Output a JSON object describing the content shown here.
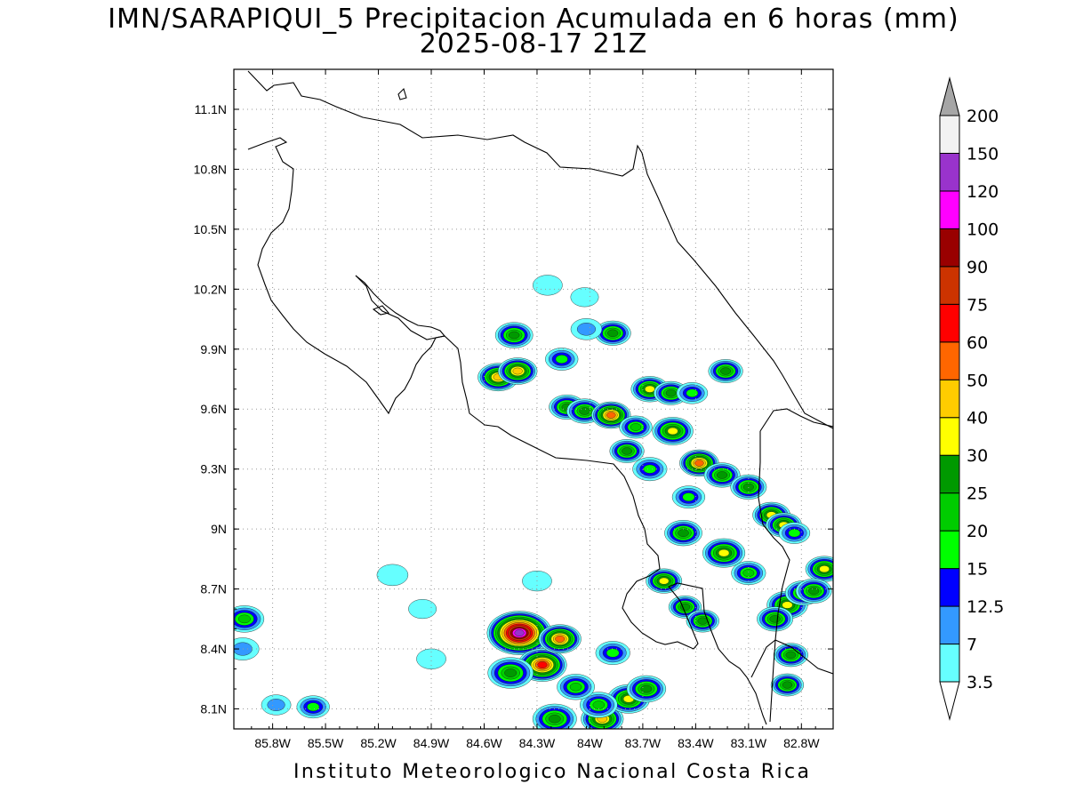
{
  "header": {
    "title": "IMN/SARAPIQUI_5 Precipitacion Acumulada en 6 horas (mm)",
    "subtitle": "2025-08-17 21Z"
  },
  "footer": {
    "credit": "Instituto Meteorologico Nacional Costa Rica"
  },
  "map": {
    "lon_range": [
      -86.02,
      -82.62
    ],
    "lat_range": [
      8.0,
      11.3
    ],
    "lon_ticks": [
      "85.8W",
      "85.5W",
      "85.2W",
      "84.9W",
      "84.6W",
      "84.3W",
      "84W",
      "83.7W",
      "83.4W",
      "83.1W",
      "82.8W"
    ],
    "lat_ticks": [
      "8.1N",
      "8.4N",
      "8.7N",
      "9N",
      "9.3N",
      "9.6N",
      "9.9N",
      "10.2N",
      "10.5N",
      "10.8N",
      "11.1N"
    ],
    "grid": true
  },
  "colorbar": {
    "units": "mm",
    "levels": [
      "3.5",
      "7",
      "12.5",
      "15",
      "20",
      "25",
      "30",
      "40",
      "50",
      "60",
      "75",
      "90",
      "100",
      "120",
      "150",
      "200"
    ],
    "colors": [
      "#66ffff",
      "#3399ff",
      "#0000ff",
      "#00ff00",
      "#00cc00",
      "#009900",
      "#ffff00",
      "#ffcc00",
      "#ff6600",
      "#ff0000",
      "#cc3300",
      "#990000",
      "#ff00ff",
      "#9933cc",
      "#f2f2f2",
      "#a6a6a6"
    ]
  }
}
